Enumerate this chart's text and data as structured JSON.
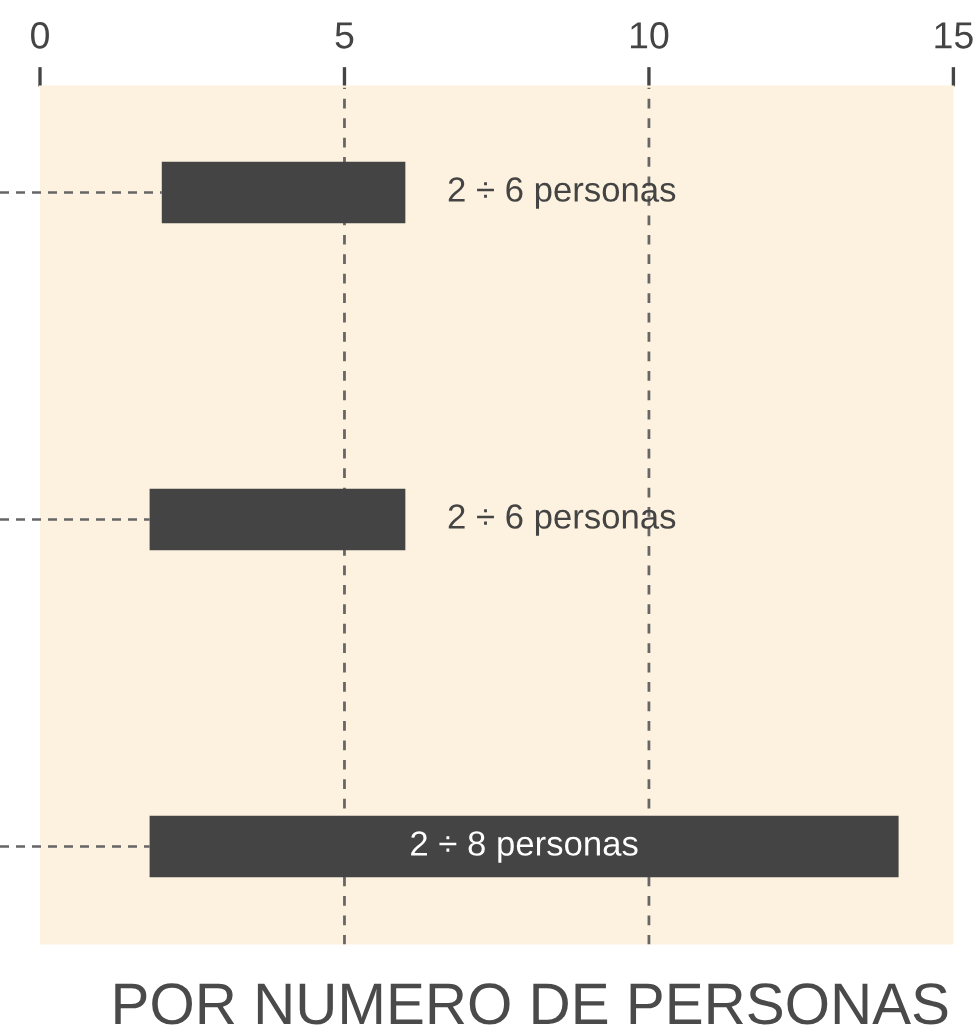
{
  "chart_data": {
    "type": "bar",
    "orientation": "horizontal",
    "title": "POR NUMERO DE PERSONAS",
    "categories": [
      null,
      null,
      null
    ],
    "base": [
      2,
      1.8,
      1.8
    ],
    "values": [
      4,
      4.2,
      12.3
    ],
    "color": "#444444",
    "annotations": [
      "2 ÷ 6 personas",
      "2 ÷ 6 personas",
      "2 ÷ 8 personas"
    ],
    "xlim": [
      0,
      15
    ],
    "xticks": [
      0,
      5,
      10,
      15
    ],
    "grid": "x"
  }
}
